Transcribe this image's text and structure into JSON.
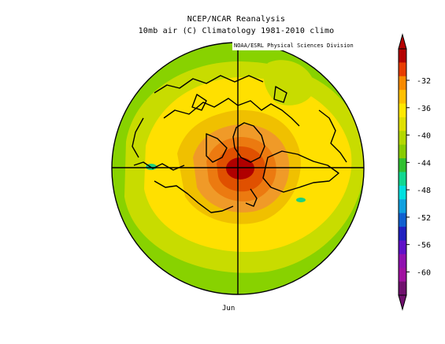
{
  "title": {
    "line1": "NCEP/NCAR Reanalysis",
    "line2": "10mb air (C) Climatology 1981-2010 climo"
  },
  "credit": "NOAA/ESRL Physical Sciences Division",
  "month": "Jun",
  "colorbar": {
    "labels": [
      "-32",
      "-36",
      "-40",
      "-44",
      "-48",
      "-52",
      "-56",
      "-60"
    ],
    "colors_top_to_bottom": [
      "#b40000",
      "#e83c00",
      "#f78a00",
      "#ffc000",
      "#ffe800",
      "#e0e000",
      "#b4d800",
      "#88cc00",
      "#30c030",
      "#10d890",
      "#00e0e0",
      "#10a0e0",
      "#1060d0",
      "#2020c0",
      "#6010c8",
      "#9010b0",
      "#a010a0",
      "#70106e"
    ]
  },
  "palette": {
    "outer": "#88d200",
    "ring": "#c8dc00",
    "light": "#ffe000",
    "warm1": "#f0c000",
    "warm2": "#f09a28",
    "warm3": "#ec7a10",
    "warm4": "#e05000",
    "core": "#b00000",
    "cool": "#1ed07e"
  }
}
